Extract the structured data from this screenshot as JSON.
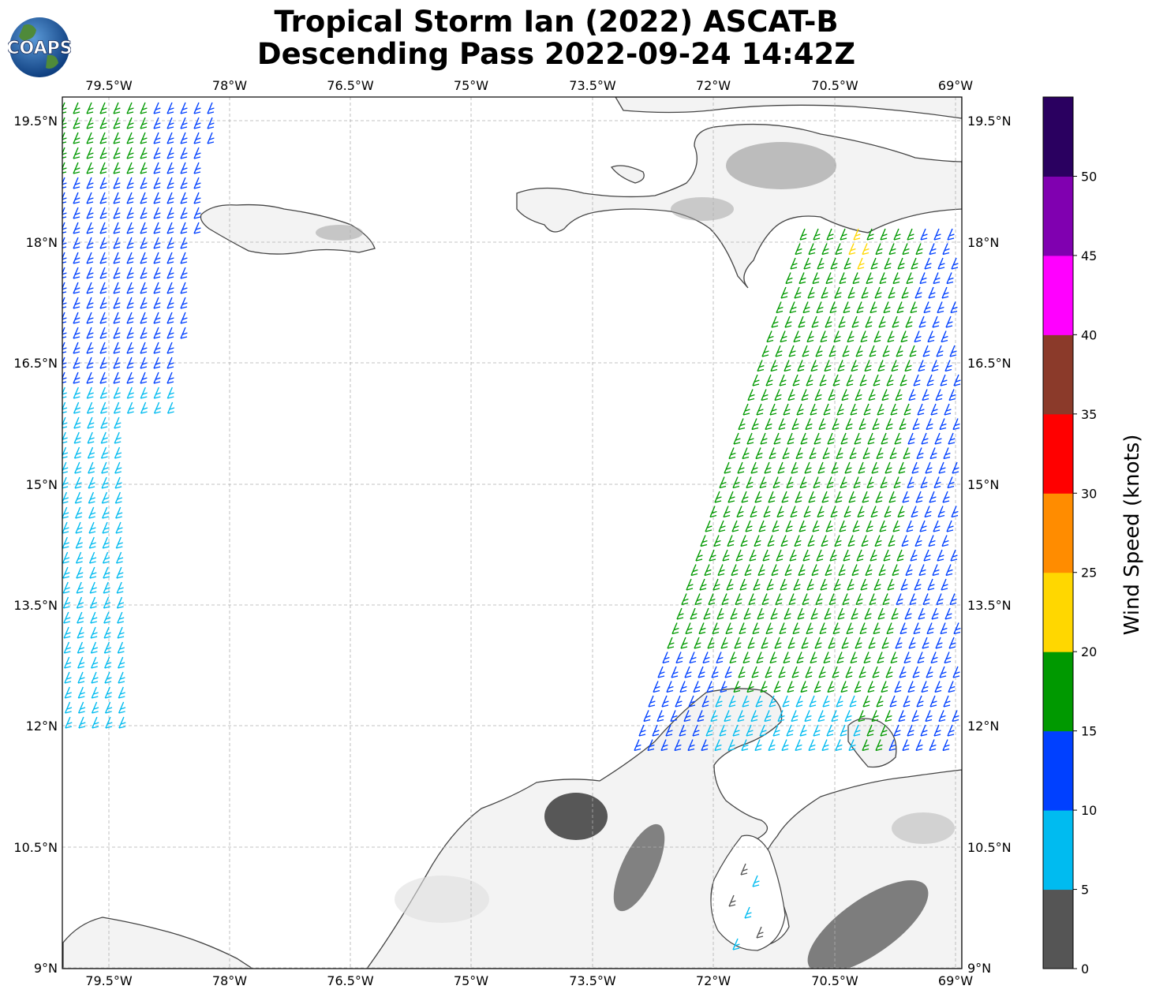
{
  "title": {
    "line1": "Tropical Storm Ian (2022) ASCAT-B",
    "line2": "Descending Pass 2022-09-24 14:42Z"
  },
  "logo": {
    "text": "COAPS"
  },
  "map": {
    "lon_range": [
      -80.1,
      -69.0
    ],
    "lat_range": [
      9.0,
      19.8
    ],
    "lon_ticks": [
      "79.5°W",
      "78°W",
      "76.5°W",
      "75°W",
      "73.5°W",
      "72°W",
      "70.5°W",
      "69°W"
    ],
    "lat_ticks": [
      "19.5°N",
      "18°N",
      "16.5°N",
      "15°N",
      "13.5°N",
      "12°N",
      "10.5°N",
      "9°N"
    ],
    "gridlines": true,
    "background": "white with grey terrain shading on land",
    "coast_color": "#444444"
  },
  "colorbar": {
    "label": "Wind Speed (knots)",
    "ticks": [
      "0",
      "5",
      "10",
      "15",
      "20",
      "25",
      "30",
      "35",
      "40",
      "45",
      "50"
    ],
    "colors": [
      "#555555",
      "#00bbf0",
      "#0040ff",
      "#009900",
      "#ffd700",
      "#ff8c00",
      "#ff0000",
      "#8b3a2a",
      "#ff00ff",
      "#8000b0",
      "#2a0060"
    ]
  },
  "chart_data": {
    "type": "wind-barbs",
    "series": [
      {
        "name": "West swath",
        "lon_range": [
          -80.1,
          -78.0
        ],
        "lat_range": [
          11.8,
          19.8
        ],
        "dominant_speed_knots": "5-15",
        "direction": "easterly"
      },
      {
        "name": "East swath",
        "lon_range": [
          -72.9,
          -69.0
        ],
        "lat_range": [
          11.5,
          18.3
        ],
        "dominant_speed_knots": "10-20",
        "direction": "easterly"
      }
    ]
  }
}
